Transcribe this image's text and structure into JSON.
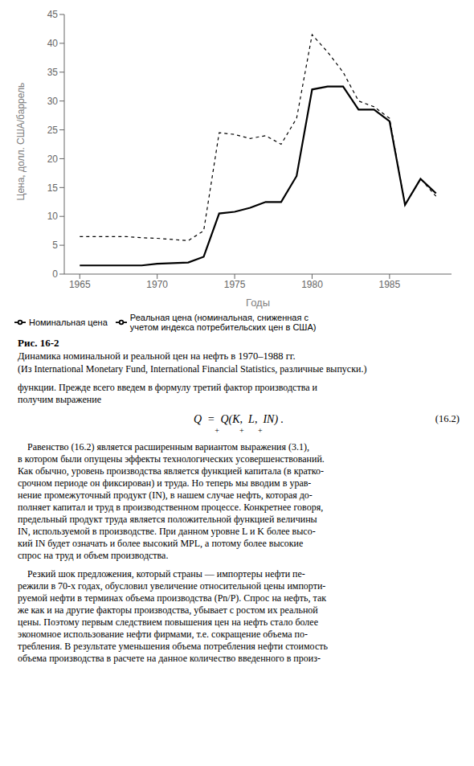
{
  "chart_data": {
    "type": "line",
    "title": "Рис. 16-2",
    "subtitle": "Динамика номинальной и реальной цен на нефть в 1970–1988 гг.",
    "x": [
      1965,
      1966,
      1967,
      1968,
      1969,
      1970,
      1971,
      1972,
      1973,
      1974,
      1975,
      1976,
      1977,
      1978,
      1979,
      1980,
      1981,
      1982,
      1983,
      1984,
      1985,
      1986,
      1987,
      1988
    ],
    "series": [
      {
        "name": "Номинальная цена",
        "color": "#000000",
        "line_style": "solid",
        "values": [
          1.5,
          1.5,
          1.5,
          1.5,
          1.5,
          1.8,
          1.9,
          2.0,
          3.0,
          10.5,
          10.8,
          11.5,
          12.5,
          12.5,
          17.0,
          32.0,
          32.5,
          32.5,
          28.5,
          28.5,
          26.5,
          12.0,
          16.5,
          14.0
        ]
      },
      {
        "name": "Реальная цена (номинальная, сниженная с\nучетом индекса потребительских цен в США)",
        "color": "#000000",
        "line_style": "dashed",
        "values": [
          6.5,
          6.5,
          6.5,
          6.5,
          6.3,
          6.2,
          6.0,
          5.8,
          7.5,
          24.5,
          24.2,
          23.5,
          24.0,
          22.5,
          27.0,
          41.5,
          38.5,
          35.0,
          30.0,
          29.0,
          27.0,
          12.0,
          16.5,
          13.5
        ]
      }
    ],
    "xlabel": "Годы",
    "ylabel": "Цена, долл. США/баррель",
    "xlim": [
      1964,
      1989
    ],
    "ylim": [
      0,
      45
    ],
    "xticks": [
      1965,
      1970,
      1975,
      1980,
      1985
    ],
    "yticks": [
      0,
      5,
      10,
      15,
      20,
      25,
      30,
      35,
      40,
      45
    ],
    "grid": false,
    "legend": "bottom",
    "annotations": [
      [
        [
          "(Из International Monetary Fund, International Financial Statistics, различные выпуски.)"
        ]
      ],
      [
        [
          "функции. Прежде всего введем в формулу третий фактор производства и"
        ],
        [
          "получим выражение"
        ]
      ],
      [
        [
          "Q  =  Q(K,  L,  IN) .",
          "(16.2)"
        ],
        [
          "+          +       +"
        ]
      ],
      [
        [
          "    Равенство (16.2) является расширенным вариантом выражения (3.1),"
        ],
        [
          "в котором были опущены эффекты технологических усовершенствований."
        ],
        [
          "Как обычно, уровень производства является функцией капитала (в кратко-"
        ],
        [
          "срочном периоде он фиксирован) и труда. Но теперь мы вводим в урав-"
        ],
        [
          "нение промежуточный продукт (IN), в нашем случае нефть, которая до-"
        ],
        [
          "полняет капитал и труд в производственном процессе. Конкретнее говоря,"
        ],
        [
          "предельный продукт труда является положительной функцией величины"
        ],
        [
          "IN, используемой в производстве. При данном уровне L и K более высо-"
        ],
        [
          "кий IN будет означать и более высокий MPL, а потому более высокие"
        ],
        [
          "спрос на труд и объем производства."
        ]
      ],
      [
        [
          "    Резкий шок предложения, который страны — импортеры нефти пе-"
        ],
        [
          "режили в 70-х годах, обусловил увеличение относительной цены импорти-"
        ],
        [
          "руемой нефти в терминах объема производства (Pn/P). Спрос на нефть, так"
        ],
        [
          "же как и на другие факторы производства, убывает с ростом их реальной"
        ],
        [
          "цены. Поэтому первым следствием повышения цен на нефть стало более"
        ],
        [
          "экономное использование нефти фирмами, т.е. сокращение объема по-"
        ],
        [
          "требления. В результате уменьшения объема потребления нефти стоимость"
        ],
        [
          "объема производства в расчете на данное количество введенного в произ-"
        ]
      ]
    ]
  }
}
